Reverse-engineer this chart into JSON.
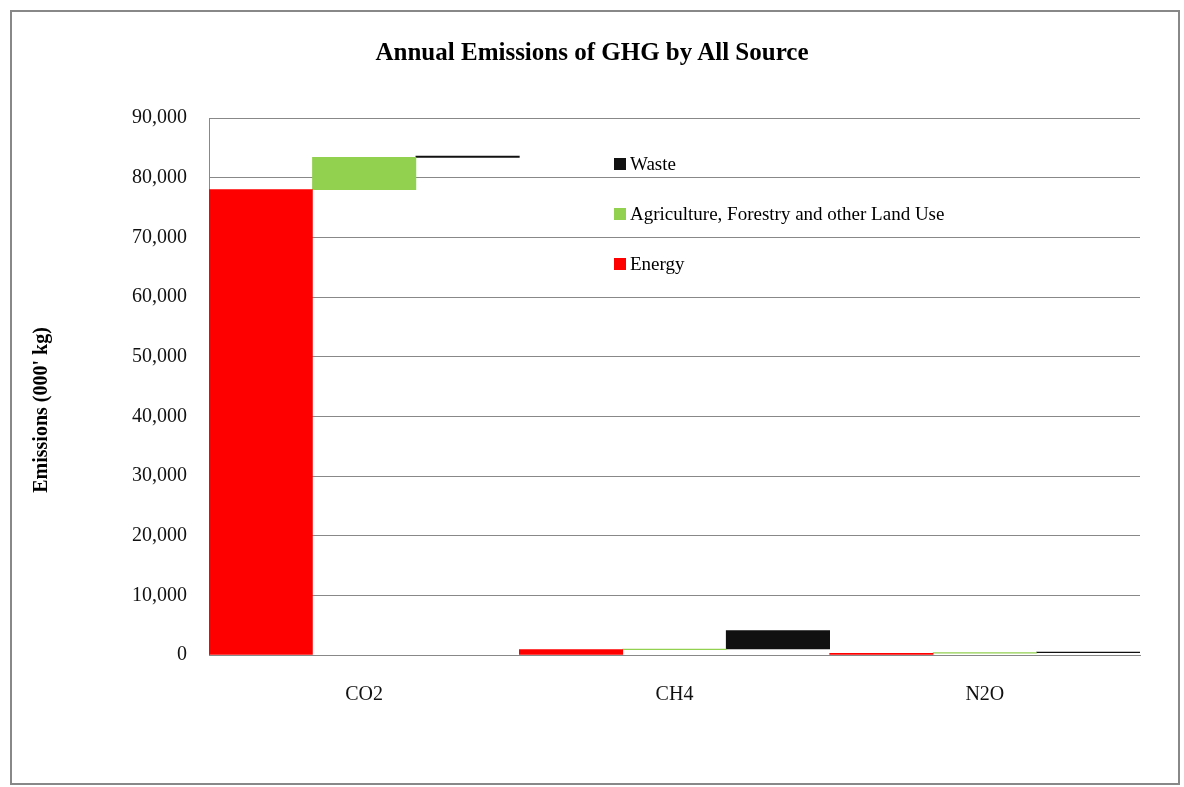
{
  "chart_data": {
    "type": "bar",
    "title": "Annual Emissions of GHG by All Source",
    "ylabel": "Emissions (000' kg)",
    "categories": [
      "CO2",
      "CH4",
      "N2O"
    ],
    "series": [
      {
        "name": "Energy",
        "color": "#ff0000",
        "values": [
          78000,
          900,
          300
        ],
        "base": [
          0,
          0,
          0
        ]
      },
      {
        "name": "Agriculture, Forestry and other Land Use",
        "color": "#92d050",
        "values": [
          5400,
          100,
          100
        ],
        "base": [
          78000,
          900,
          300
        ]
      },
      {
        "name": "Waste",
        "color": "#111111",
        "values": [
          200,
          3100,
          100
        ],
        "base": [
          83400,
          1000,
          400
        ]
      }
    ],
    "ylim": [
      0,
      90000
    ],
    "yticks": [
      {
        "value": 0,
        "label": "0"
      },
      {
        "value": 10000,
        "label": "10,000"
      },
      {
        "value": 20000,
        "label": "20,000"
      },
      {
        "value": 30000,
        "label": "30,000"
      },
      {
        "value": 40000,
        "label": "40,000"
      },
      {
        "value": 50000,
        "label": "50,000"
      },
      {
        "value": 60000,
        "label": "60,000"
      },
      {
        "value": 70000,
        "label": "70,000"
      },
      {
        "value": 80000,
        "label": "80,000"
      },
      {
        "value": 90000,
        "label": "90,000"
      }
    ],
    "grid": "y",
    "legend": "top right"
  }
}
